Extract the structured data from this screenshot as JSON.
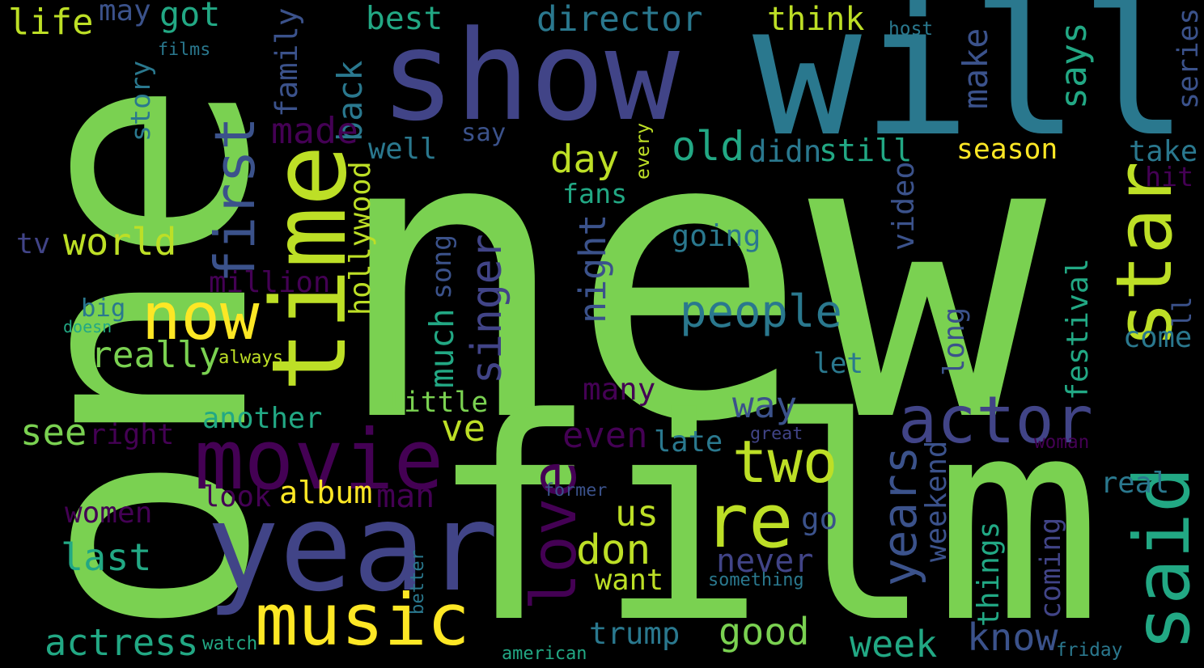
{
  "palette": {
    "background": "#000000",
    "light_green": "#7ad151",
    "yellow_green": "#bddf26",
    "yellow": "#fde725",
    "teal": "#2a788e",
    "sea_green": "#22a884",
    "purple": "#440154",
    "indigo": "#414487"
  },
  "words": [
    {
      "text": "new",
      "color": "#7ad151"
    },
    {
      "text": "one",
      "color": "#7ad151"
    },
    {
      "text": "film",
      "color": "#7ad151"
    },
    {
      "text": "will",
      "color": "#2a788e"
    },
    {
      "text": "show",
      "color": "#414487"
    },
    {
      "text": "year",
      "color": "#414487"
    },
    {
      "text": "said",
      "color": "#22a884"
    },
    {
      "text": "star",
      "color": "#bddf26"
    },
    {
      "text": "time",
      "color": "#bddf26"
    },
    {
      "text": "first",
      "color": "#3b528b"
    },
    {
      "text": "movie",
      "color": "#440154"
    },
    {
      "text": "music",
      "color": "#fde725"
    },
    {
      "text": "re",
      "color": "#bddf26"
    },
    {
      "text": "actor",
      "color": "#414487"
    },
    {
      "text": "two",
      "color": "#bddf26"
    },
    {
      "text": "love",
      "color": "#440154"
    },
    {
      "text": "now",
      "color": "#fde725"
    },
    {
      "text": "people",
      "color": "#2a788e"
    },
    {
      "text": "years",
      "color": "#3b528b"
    },
    {
      "text": "singer",
      "color": "#414487"
    },
    {
      "text": "actress",
      "color": "#22a884"
    },
    {
      "text": "back",
      "color": "#2a788e"
    },
    {
      "text": "best",
      "color": "#22a884"
    },
    {
      "text": "director",
      "color": "#2a788e"
    },
    {
      "text": "think",
      "color": "#bddf26"
    },
    {
      "text": "life",
      "color": "#bddf26"
    },
    {
      "text": "may",
      "color": "#3b528b"
    },
    {
      "text": "got",
      "color": "#22a884"
    },
    {
      "text": "films",
      "color": "#2a788e"
    },
    {
      "text": "host",
      "color": "#2a788e"
    },
    {
      "text": "series",
      "color": "#3b528b"
    },
    {
      "text": "says",
      "color": "#22a884"
    },
    {
      "text": "make",
      "color": "#3b528b"
    },
    {
      "text": "family",
      "color": "#3b528b"
    },
    {
      "text": "story",
      "color": "#2a788e"
    },
    {
      "text": "made",
      "color": "#440154"
    },
    {
      "text": "say",
      "color": "#3b528b"
    },
    {
      "text": "old",
      "color": "#22a884"
    },
    {
      "text": "didn",
      "color": "#2a788e"
    },
    {
      "text": "still",
      "color": "#22a884"
    },
    {
      "text": "season",
      "color": "#fde725"
    },
    {
      "text": "take",
      "color": "#2a788e"
    },
    {
      "text": "hit",
      "color": "#440154"
    },
    {
      "text": "every",
      "color": "#bddf26"
    },
    {
      "text": "well",
      "color": "#2a788e"
    },
    {
      "text": "day",
      "color": "#bddf26"
    },
    {
      "text": "fans",
      "color": "#22a884"
    },
    {
      "text": "hollywood",
      "color": "#bddf26"
    },
    {
      "text": "world",
      "color": "#bddf26"
    },
    {
      "text": "tv",
      "color": "#414487"
    },
    {
      "text": "going",
      "color": "#2a788e"
    },
    {
      "text": "video",
      "color": "#3b528b"
    },
    {
      "text": "million",
      "color": "#440154"
    },
    {
      "text": "night",
      "color": "#3b528b"
    },
    {
      "text": "song",
      "color": "#3b528b"
    },
    {
      "text": "festival",
      "color": "#22a884"
    },
    {
      "text": "ll",
      "color": "#3b528b"
    },
    {
      "text": "big",
      "color": "#2a788e"
    },
    {
      "text": "doesn",
      "color": "#22a884"
    },
    {
      "text": "really",
      "color": "#7ad151"
    },
    {
      "text": "always",
      "color": "#bddf26"
    },
    {
      "text": "much",
      "color": "#22a884"
    },
    {
      "text": "long",
      "color": "#3b528b"
    },
    {
      "text": "come",
      "color": "#2a788e"
    },
    {
      "text": "let",
      "color": "#2a788e"
    },
    {
      "text": "many",
      "color": "#440154"
    },
    {
      "text": "little",
      "color": "#7ad151"
    },
    {
      "text": "way",
      "color": "#3b528b"
    },
    {
      "text": "see",
      "color": "#7ad151"
    },
    {
      "text": "another",
      "color": "#22a884"
    },
    {
      "text": "right",
      "color": "#440154"
    },
    {
      "text": "ve",
      "color": "#bddf26"
    },
    {
      "text": "even",
      "color": "#440154"
    },
    {
      "text": "late",
      "color": "#2a788e"
    },
    {
      "text": "great",
      "color": "#414487"
    },
    {
      "text": "woman",
      "color": "#440154"
    },
    {
      "text": "weekend",
      "color": "#3b528b"
    },
    {
      "text": "real",
      "color": "#2a788e"
    },
    {
      "text": "look",
      "color": "#440154"
    },
    {
      "text": "album",
      "color": "#fde725"
    },
    {
      "text": "man",
      "color": "#440154"
    },
    {
      "text": "former",
      "color": "#3b528b"
    },
    {
      "text": "women",
      "color": "#440154"
    },
    {
      "text": "us",
      "color": "#bddf26"
    },
    {
      "text": "go",
      "color": "#3b528b"
    },
    {
      "text": "last",
      "color": "#22a884"
    },
    {
      "text": "don",
      "color": "#bddf26"
    },
    {
      "text": "never",
      "color": "#414487"
    },
    {
      "text": "things",
      "color": "#22a884"
    },
    {
      "text": "coming",
      "color": "#414487"
    },
    {
      "text": "want",
      "color": "#bddf26"
    },
    {
      "text": "something",
      "color": "#2a788e"
    },
    {
      "text": "better",
      "color": "#2a788e"
    },
    {
      "text": "trump",
      "color": "#2a788e"
    },
    {
      "text": "good",
      "color": "#7ad151"
    },
    {
      "text": "week",
      "color": "#22a884"
    },
    {
      "text": "know",
      "color": "#3b528b"
    },
    {
      "text": "watch",
      "color": "#22a884"
    },
    {
      "text": "american",
      "color": "#22a884"
    },
    {
      "text": "friday",
      "color": "#2a788e"
    }
  ]
}
